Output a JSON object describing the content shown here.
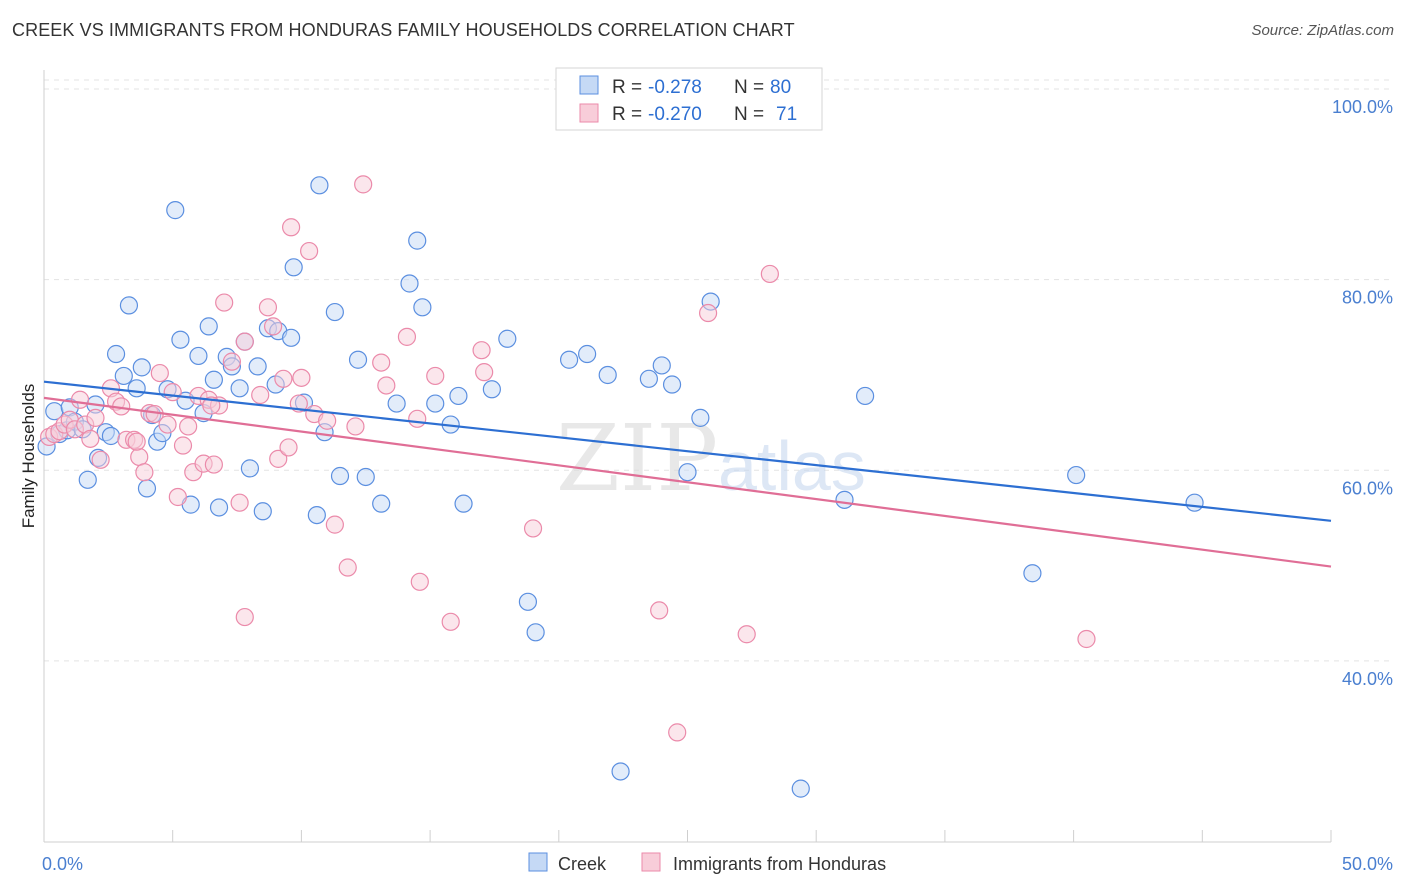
{
  "header": {
    "title": "CREEK VS IMMIGRANTS FROM HONDURAS FAMILY HOUSEHOLDS CORRELATION CHART",
    "source": "Source: ZipAtlas.com"
  },
  "watermark": {
    "zip": "ZIP",
    "atlas": "atlas"
  },
  "stats": [
    {
      "r_label": "R =",
      "r_value": "-0.278",
      "n_label": "N =",
      "n_value": "80"
    },
    {
      "r_label": "R =",
      "r_value": "-0.270",
      "n_label": "N =",
      "n_value": "71"
    }
  ],
  "chart_data": {
    "type": "scatter",
    "title": "CREEK VS IMMIGRANTS FROM HONDURAS FAMILY HOUSEHOLDS CORRELATION CHART",
    "xlabel": "",
    "ylabel": "Family Households",
    "xlim": [
      0,
      50
    ],
    "ylim": [
      21,
      102
    ],
    "x_tick_labels": [
      "0.0%",
      "50.0%"
    ],
    "y_ticks": [
      40,
      60,
      80,
      100
    ],
    "y_tick_labels": [
      "40.0%",
      "60.0%",
      "80.0%",
      "100.0%"
    ],
    "grid": true,
    "legend_position": "bottom-center",
    "colors": {
      "creek": "#5b8fe0",
      "honduras": "#eb8aaa",
      "creek_line": "#2d6fd2",
      "honduras_line": "#e06e96"
    },
    "series": [
      {
        "name": "Creek",
        "trend": {
          "x": [
            0,
            50
          ],
          "y": [
            69.3,
            54.7
          ]
        },
        "points": [
          [
            0.1,
            62.5
          ],
          [
            0.4,
            66.2
          ],
          [
            0.6,
            63.8
          ],
          [
            0.9,
            64.2
          ],
          [
            1.0,
            66.6
          ],
          [
            1.2,
            65.1
          ],
          [
            1.5,
            64.3
          ],
          [
            1.7,
            59.0
          ],
          [
            2.0,
            66.9
          ],
          [
            2.1,
            61.3
          ],
          [
            2.4,
            64.0
          ],
          [
            2.6,
            63.6
          ],
          [
            2.8,
            72.2
          ],
          [
            3.1,
            69.9
          ],
          [
            3.3,
            77.3
          ],
          [
            3.6,
            68.6
          ],
          [
            3.8,
            70.8
          ],
          [
            4.0,
            58.1
          ],
          [
            4.2,
            65.8
          ],
          [
            4.4,
            63.0
          ],
          [
            4.6,
            63.9
          ],
          [
            4.8,
            68.5
          ],
          [
            5.1,
            87.3
          ],
          [
            5.3,
            73.7
          ],
          [
            5.5,
            67.3
          ],
          [
            5.7,
            56.4
          ],
          [
            6.0,
            72.0
          ],
          [
            6.2,
            66.0
          ],
          [
            6.4,
            75.1
          ],
          [
            6.6,
            69.5
          ],
          [
            6.8,
            56.1
          ],
          [
            7.1,
            71.9
          ],
          [
            7.3,
            70.9
          ],
          [
            7.6,
            68.6
          ],
          [
            7.8,
            73.5
          ],
          [
            8.0,
            60.2
          ],
          [
            8.3,
            70.9
          ],
          [
            8.5,
            55.7
          ],
          [
            8.7,
            74.9
          ],
          [
            9.0,
            69.0
          ],
          [
            9.1,
            74.6
          ],
          [
            9.6,
            73.9
          ],
          [
            9.7,
            81.3
          ],
          [
            10.1,
            67.1
          ],
          [
            10.6,
            55.3
          ],
          [
            10.7,
            89.9
          ],
          [
            10.9,
            64.0
          ],
          [
            11.3,
            76.6
          ],
          [
            11.5,
            59.4
          ],
          [
            12.2,
            71.6
          ],
          [
            12.5,
            59.3
          ],
          [
            13.1,
            56.5
          ],
          [
            13.7,
            67.0
          ],
          [
            14.2,
            79.6
          ],
          [
            14.5,
            84.1
          ],
          [
            14.7,
            77.1
          ],
          [
            15.2,
            67.0
          ],
          [
            15.8,
            64.8
          ],
          [
            16.1,
            67.8
          ],
          [
            16.3,
            56.5
          ],
          [
            17.4,
            68.5
          ],
          [
            18.0,
            73.8
          ],
          [
            18.8,
            46.2
          ],
          [
            19.1,
            43.0
          ],
          [
            20.4,
            71.6
          ],
          [
            21.1,
            72.2
          ],
          [
            21.9,
            70.0
          ],
          [
            22.4,
            28.4
          ],
          [
            23.5,
            69.6
          ],
          [
            24.0,
            71.0
          ],
          [
            24.4,
            69.0
          ],
          [
            25.0,
            59.8
          ],
          [
            25.5,
            65.5
          ],
          [
            25.9,
            77.7
          ],
          [
            29.4,
            26.6
          ],
          [
            31.1,
            56.9
          ],
          [
            31.9,
            67.8
          ],
          [
            38.4,
            49.2
          ],
          [
            40.1,
            59.5
          ],
          [
            44.7,
            56.6
          ]
        ]
      },
      {
        "name": "Immigrants from Honduras",
        "trend": {
          "x": [
            0,
            50
          ],
          "y": [
            67.6,
            49.9
          ]
        },
        "points": [
          [
            0.2,
            63.5
          ],
          [
            0.4,
            63.8
          ],
          [
            0.6,
            64.1
          ],
          [
            0.8,
            64.8
          ],
          [
            1.0,
            65.3
          ],
          [
            1.2,
            64.3
          ],
          [
            1.4,
            67.4
          ],
          [
            1.6,
            64.8
          ],
          [
            1.8,
            63.3
          ],
          [
            2.0,
            65.5
          ],
          [
            2.2,
            61.1
          ],
          [
            2.6,
            68.6
          ],
          [
            2.8,
            67.2
          ],
          [
            3.0,
            66.7
          ],
          [
            3.2,
            63.2
          ],
          [
            3.5,
            63.2
          ],
          [
            3.7,
            61.4
          ],
          [
            3.9,
            59.8
          ],
          [
            4.1,
            66.0
          ],
          [
            4.3,
            65.9
          ],
          [
            4.5,
            70.2
          ],
          [
            4.8,
            64.8
          ],
          [
            5.0,
            68.2
          ],
          [
            5.2,
            57.2
          ],
          [
            5.4,
            62.6
          ],
          [
            5.6,
            64.6
          ],
          [
            5.8,
            59.8
          ],
          [
            6.0,
            67.8
          ],
          [
            6.2,
            60.7
          ],
          [
            6.4,
            67.4
          ],
          [
            6.6,
            60.6
          ],
          [
            6.8,
            66.8
          ],
          [
            7.0,
            77.6
          ],
          [
            7.3,
            71.4
          ],
          [
            7.6,
            56.6
          ],
          [
            7.8,
            44.6
          ],
          [
            7.8,
            73.5
          ],
          [
            8.4,
            67.9
          ],
          [
            8.7,
            77.1
          ],
          [
            8.9,
            75.1
          ],
          [
            9.1,
            61.2
          ],
          [
            9.3,
            69.6
          ],
          [
            9.5,
            62.4
          ],
          [
            9.6,
            85.5
          ],
          [
            10.0,
            69.7
          ],
          [
            10.3,
            83.0
          ],
          [
            10.5,
            65.9
          ],
          [
            11.0,
            65.2
          ],
          [
            11.3,
            54.3
          ],
          [
            11.8,
            49.8
          ],
          [
            12.1,
            64.6
          ],
          [
            12.4,
            90.0
          ],
          [
            13.1,
            71.3
          ],
          [
            13.3,
            68.9
          ],
          [
            14.1,
            74.0
          ],
          [
            14.5,
            65.4
          ],
          [
            14.6,
            48.3
          ],
          [
            15.2,
            69.9
          ],
          [
            15.8,
            44.1
          ],
          [
            17.0,
            72.6
          ],
          [
            17.1,
            70.3
          ],
          [
            19.0,
            53.9
          ],
          [
            23.9,
            45.3
          ],
          [
            24.6,
            32.5
          ],
          [
            25.8,
            76.5
          ],
          [
            27.3,
            42.8
          ],
          [
            28.2,
            80.6
          ],
          [
            40.5,
            42.3
          ],
          [
            3.6,
            63.0
          ],
          [
            6.5,
            66.8
          ],
          [
            9.9,
            67.0
          ]
        ]
      }
    ]
  },
  "legend": [
    {
      "label": "Creek"
    },
    {
      "label": "Immigrants from Honduras"
    }
  ]
}
